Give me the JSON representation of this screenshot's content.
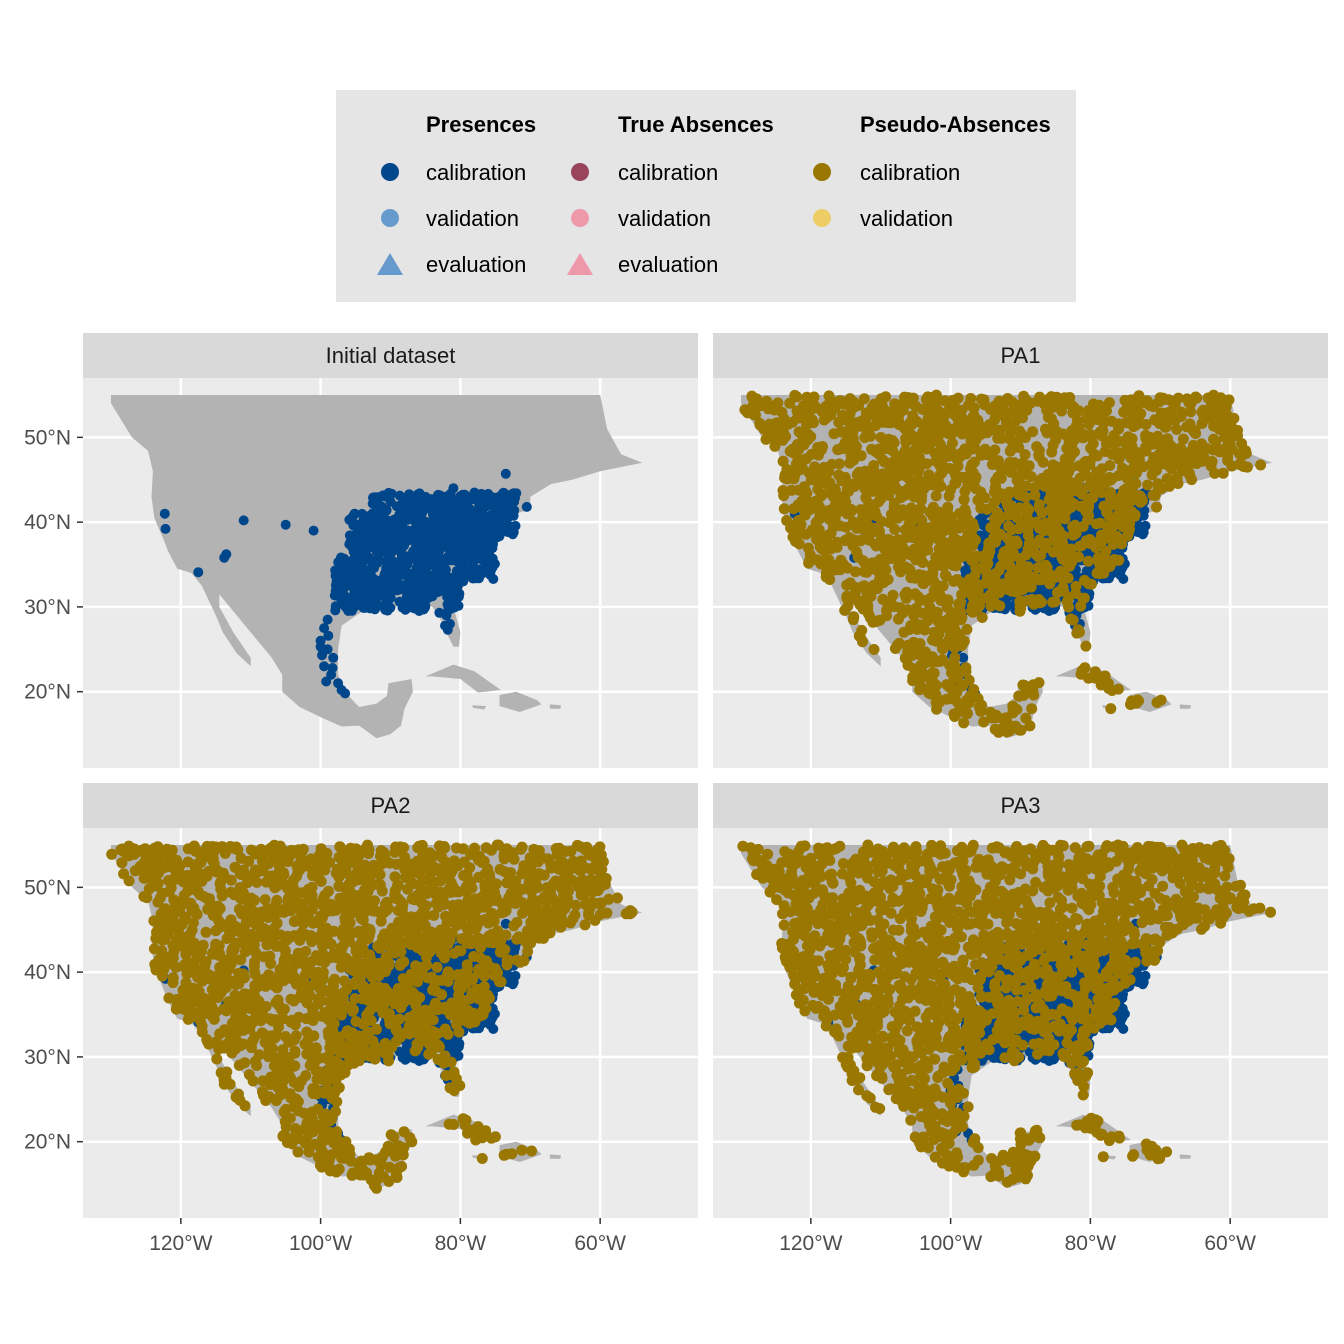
{
  "legend": {
    "groups": [
      {
        "title": "Presences",
        "items": [
          {
            "label": "calibration",
            "shape": "circle",
            "color": "#00468b"
          },
          {
            "label": "validation",
            "shape": "circle",
            "color": "#6699cc"
          },
          {
            "label": "evaluation",
            "shape": "triangle",
            "color": "#6699cc"
          }
        ]
      },
      {
        "title": "True Absences",
        "items": [
          {
            "label": "calibration",
            "shape": "circle",
            "color": "#99445a"
          },
          {
            "label": "validation",
            "shape": "circle",
            "color": "#ee99aa"
          },
          {
            "label": "evaluation",
            "shape": "triangle",
            "color": "#ee99aa"
          }
        ]
      },
      {
        "title": "Pseudo-Absences",
        "items": [
          {
            "label": "calibration",
            "shape": "circle",
            "color": "#997700"
          },
          {
            "label": "validation",
            "shape": "circle",
            "color": "#eecc66"
          }
        ]
      }
    ]
  },
  "panels": [
    {
      "title": "Initial dataset",
      "pseudo_absences": false
    },
    {
      "title": "PA1",
      "pseudo_absences": true
    },
    {
      "title": "PA2",
      "pseudo_absences": true
    },
    {
      "title": "PA3",
      "pseudo_absences": true
    }
  ],
  "axes": {
    "x_ticks": [
      {
        "value": -120,
        "label": "120°W"
      },
      {
        "value": -100,
        "label": "100°W"
      },
      {
        "value": -80,
        "label": "80°W"
      },
      {
        "value": -60,
        "label": "60°W"
      }
    ],
    "y_ticks": [
      {
        "value": 20,
        "label": "20°N"
      },
      {
        "value": 30,
        "label": "30°N"
      },
      {
        "value": 40,
        "label": "40°N"
      },
      {
        "value": 50,
        "label": "50°N"
      }
    ],
    "xlim": [
      -134,
      -46
    ],
    "ylim": [
      11,
      57
    ]
  },
  "colors": {
    "panel_bg": "#ebebeb",
    "grid": "#ffffff",
    "land": "#b3b3b3",
    "strip": "#d9d9d9",
    "presence": "#00468b",
    "pseudo_absence": "#997700"
  }
}
